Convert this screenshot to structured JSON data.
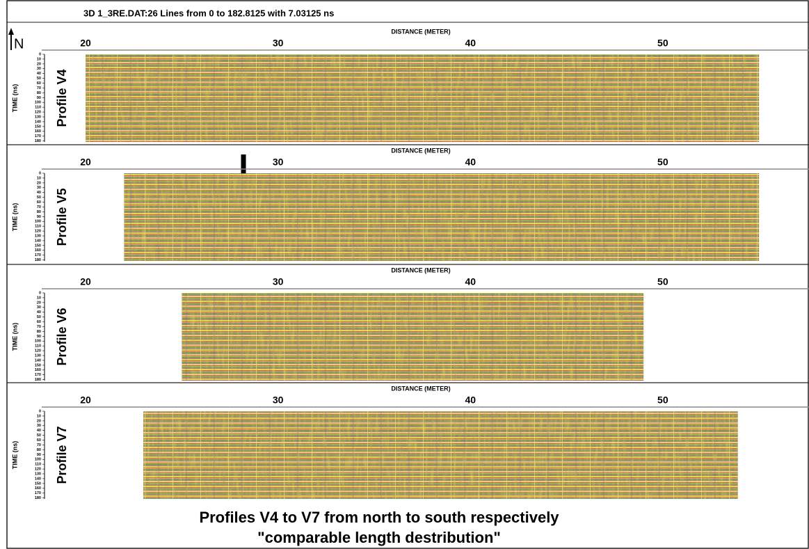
{
  "header": {
    "title": "3D 1_3RE.DAT:26 Lines from 0 to 182.8125 with 7.03125 ns"
  },
  "north": "N",
  "panels": [
    {
      "label": "Profile V4",
      "x_label": "DISTANCE (METER)",
      "y_label": "TIME (ns)",
      "xlim": [
        19.6,
        57.2
      ],
      "xticks": [
        20,
        30,
        40,
        50
      ],
      "ylim": [
        0,
        182
      ],
      "yticks": [
        0,
        10,
        20,
        30,
        40,
        50,
        60,
        70,
        80,
        90,
        100,
        110,
        120,
        130,
        140,
        150,
        160,
        170,
        180
      ],
      "extent": [
        20,
        55
      ]
    },
    {
      "label": "Profile V5",
      "x_label": "DISTANCE (METER)",
      "y_label": "TIME (ns)",
      "xlim": [
        19.6,
        57.2
      ],
      "xticks": [
        20,
        30,
        40,
        50
      ],
      "ylim": [
        0,
        182
      ],
      "yticks": [
        0,
        10,
        20,
        30,
        40,
        50,
        60,
        70,
        80,
        90,
        100,
        110,
        120,
        130,
        140,
        150,
        160,
        170,
        180
      ],
      "extent": [
        22,
        55
      ]
    },
    {
      "label": "Profile V6",
      "x_label": "DISTANCE (METER)",
      "y_label": "TIME (ns)",
      "xlim": [
        19.6,
        57.2
      ],
      "xticks": [
        20,
        30,
        40,
        50
      ],
      "ylim": [
        0,
        182
      ],
      "yticks": [
        0,
        10,
        20,
        30,
        40,
        50,
        60,
        70,
        80,
        90,
        100,
        110,
        120,
        130,
        140,
        150,
        160,
        170,
        180
      ],
      "extent": [
        25,
        49
      ]
    },
    {
      "label": "Profile V7",
      "x_label": "DISTANCE (METER)",
      "y_label": "TIME (ns)",
      "xlim": [
        19.6,
        57.2
      ],
      "xticks": [
        20,
        30,
        40,
        50
      ],
      "ylim": [
        0,
        182
      ],
      "yticks": [
        0,
        10,
        20,
        30,
        40,
        50,
        60,
        70,
        80,
        90,
        100,
        110,
        120,
        130,
        140,
        150,
        160,
        170,
        180
      ],
      "extent": [
        23,
        53.9
      ]
    }
  ],
  "caption": [
    "Profiles V4 to V7 from north to south respectively",
    "\"comparable length destribution\""
  ]
}
